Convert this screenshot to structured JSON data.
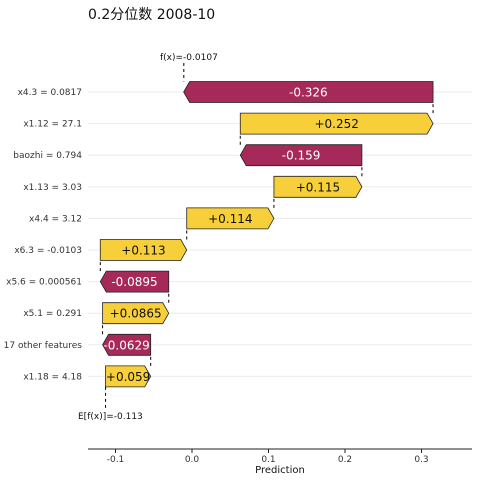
{
  "chart_data": {
    "type": "bar",
    "subtype": "waterfall",
    "title": "0.2分位数 2008-10",
    "xlabel": "Prediction",
    "xlim": [
      -0.135,
      0.37
    ],
    "xticks": [
      -0.1,
      0.0,
      0.1,
      0.2,
      0.3
    ],
    "xtick_labels": [
      "-0.1",
      "0.0",
      "0.1",
      "0.2",
      "0.3"
    ],
    "grid": true,
    "base_value": -0.113,
    "base_label": "E[f(x)]=-0.113",
    "final_value": -0.0107,
    "final_label": "f(x)=-0.0107",
    "categories": [
      "x4.3 = 0.0817",
      "x1.12 = 27.1",
      "baozhi = 0.794",
      "x1.13 = 3.03",
      "x4.4 = 3.12",
      "x6.3 = -0.0103",
      "x5.6 = 0.000561",
      "x5.1 = 0.291",
      "17 other features",
      "x1.18 = 4.18"
    ],
    "values": [
      -0.326,
      0.252,
      -0.159,
      0.115,
      0.114,
      0.113,
      -0.0895,
      0.0865,
      -0.0629,
      0.059
    ],
    "value_labels": [
      "-0.326",
      "+0.252",
      "-0.159",
      "+0.115",
      "+0.114",
      "+0.113",
      "-0.0895",
      "+0.0865",
      "-0.0629",
      "+0.059"
    ],
    "colors": {
      "positive": "#f6cf3a",
      "negative": "#a52a5a",
      "axis": "#222222",
      "grid": "#ebebeb"
    }
  }
}
